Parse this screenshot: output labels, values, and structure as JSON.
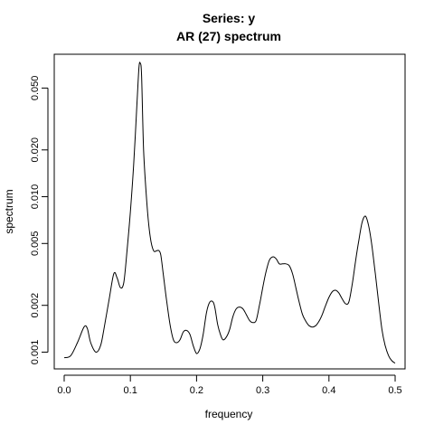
{
  "chart_data": {
    "type": "line",
    "title": "Series: y",
    "subtitle": "AR (27) spectrum",
    "xlabel": "frequency",
    "ylabel": "spectrum",
    "xlim": [
      -0.015,
      0.515
    ],
    "ylim": [
      0.00078,
      0.0825
    ],
    "y_scale": "log",
    "grid": false,
    "x_ticks": [
      0.0,
      0.1,
      0.2,
      0.3,
      0.4,
      0.5
    ],
    "x_tick_labels": [
      "0.0",
      "0.1",
      "0.2",
      "0.3",
      "0.4",
      "0.5"
    ],
    "y_ticks": [
      0.001,
      0.002,
      0.005,
      0.01,
      0.02,
      0.05
    ],
    "y_tick_labels": [
      "0.001",
      "0.002",
      "0.005",
      "0.010",
      "0.020",
      "0.050"
    ],
    "series": [
      {
        "x": [
          0.0,
          0.01,
          0.02,
          0.03,
          0.035,
          0.04,
          0.048,
          0.055,
          0.06,
          0.068,
          0.075,
          0.08,
          0.085,
          0.09,
          0.095,
          0.1,
          0.105,
          0.11,
          0.113,
          0.115,
          0.117,
          0.12,
          0.125,
          0.13,
          0.135,
          0.14,
          0.143,
          0.146,
          0.15,
          0.155,
          0.16,
          0.165,
          0.17,
          0.175,
          0.18,
          0.185,
          0.19,
          0.195,
          0.2,
          0.205,
          0.21,
          0.215,
          0.22,
          0.225,
          0.228,
          0.232,
          0.236,
          0.24,
          0.245,
          0.25,
          0.255,
          0.26,
          0.265,
          0.27,
          0.275,
          0.28,
          0.285,
          0.29,
          0.295,
          0.3,
          0.305,
          0.31,
          0.315,
          0.32,
          0.325,
          0.33,
          0.335,
          0.34,
          0.345,
          0.35,
          0.355,
          0.36,
          0.365,
          0.37,
          0.375,
          0.38,
          0.385,
          0.39,
          0.395,
          0.4,
          0.405,
          0.41,
          0.415,
          0.42,
          0.425,
          0.43,
          0.435,
          0.44,
          0.445,
          0.45,
          0.455,
          0.46,
          0.465,
          0.47,
          0.475,
          0.48,
          0.485,
          0.49,
          0.495,
          0.5
        ],
        "y": [
          0.00092,
          0.00095,
          0.00115,
          0.00145,
          0.00142,
          0.00115,
          0.001,
          0.0011,
          0.0014,
          0.0022,
          0.0032,
          0.003,
          0.0026,
          0.0028,
          0.0045,
          0.008,
          0.016,
          0.04,
          0.068,
          0.072,
          0.06,
          0.02,
          0.009,
          0.0055,
          0.0045,
          0.0045,
          0.0045,
          0.0042,
          0.0031,
          0.0021,
          0.0015,
          0.0012,
          0.00115,
          0.0012,
          0.00135,
          0.00138,
          0.0013,
          0.0011,
          0.00098,
          0.00105,
          0.0013,
          0.0018,
          0.0021,
          0.0021,
          0.0019,
          0.0015,
          0.0013,
          0.0012,
          0.00125,
          0.0014,
          0.0017,
          0.0019,
          0.00195,
          0.0019,
          0.00175,
          0.0016,
          0.00155,
          0.0016,
          0.002,
          0.0026,
          0.0033,
          0.0039,
          0.0041,
          0.004,
          0.0037,
          0.0037,
          0.0037,
          0.0036,
          0.0032,
          0.0026,
          0.0021,
          0.00175,
          0.00158,
          0.00148,
          0.00145,
          0.00148,
          0.00158,
          0.00175,
          0.002,
          0.00225,
          0.00245,
          0.0025,
          0.0024,
          0.0022,
          0.00205,
          0.0021,
          0.0027,
          0.0038,
          0.0052,
          0.0068,
          0.0075,
          0.0065,
          0.0048,
          0.0032,
          0.0021,
          0.0014,
          0.0011,
          0.00095,
          0.00088,
          0.00085
        ]
      }
    ]
  }
}
